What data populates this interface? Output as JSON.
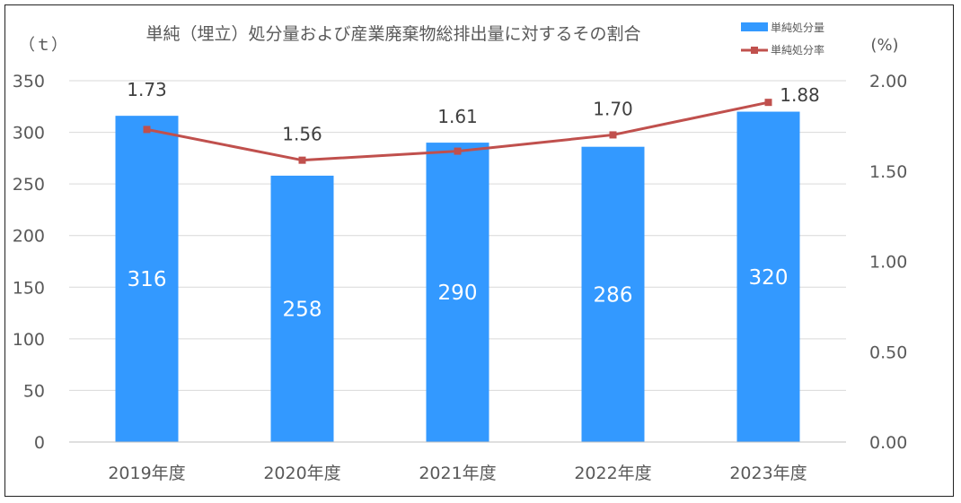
{
  "chart_data": {
    "type": "bar",
    "title": "単純（埋立）処分量および産業廃棄物総排出量に対するその割合",
    "categories": [
      "2019年度",
      "2020年度",
      "2021年度",
      "2022年度",
      "2023年度"
    ],
    "series": [
      {
        "name": "単純処分量",
        "type": "bar",
        "axis": "left",
        "values": [
          316,
          258,
          290,
          286,
          320
        ],
        "labels": [
          "316",
          "258",
          "290",
          "286",
          "320"
        ],
        "color": "#3399ff"
      },
      {
        "name": "単純処分率",
        "type": "line",
        "axis": "right",
        "values": [
          1.73,
          1.56,
          1.61,
          1.7,
          1.88
        ],
        "labels": [
          "1.73",
          "1.56",
          "1.61",
          "1.70",
          "1.88"
        ],
        "color": "#c0504d"
      }
    ],
    "y_left": {
      "unit_label": "（ｔ）",
      "range": [
        0,
        350
      ],
      "ticks": [
        0,
        50,
        100,
        150,
        200,
        250,
        300,
        350
      ],
      "tick_labels": [
        "0",
        "50",
        "100",
        "150",
        "200",
        "250",
        "300",
        "350"
      ]
    },
    "y_right": {
      "unit_label": "(%)",
      "range": [
        0,
        2.0
      ],
      "ticks": [
        0,
        0.5,
        1.0,
        1.5,
        2.0
      ],
      "tick_labels": [
        "0.00",
        "0.50",
        "1.00",
        "1.50",
        "2.00"
      ]
    },
    "grid": true,
    "legend_position": "top-right"
  }
}
